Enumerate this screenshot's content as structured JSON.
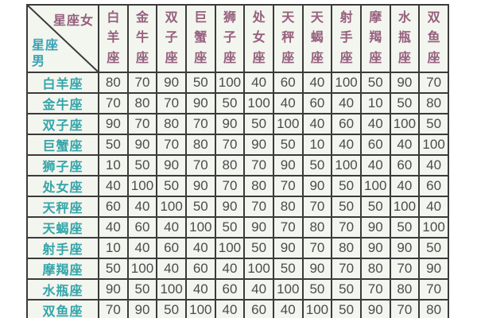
{
  "chart_data": {
    "type": "table",
    "corner": {
      "col_axis_label": "星座女",
      "row_axis_label_top": "星座",
      "row_axis_label_bottom": "男"
    },
    "columns": [
      "白羊座",
      "金牛座",
      "双子座",
      "巨蟹座",
      "狮子座",
      "处女座",
      "天秤座",
      "天蝎座",
      "射手座",
      "摩羯座",
      "水瓶座",
      "双鱼座"
    ],
    "rows": [
      "白羊座",
      "金牛座",
      "双子座",
      "巨蟹座",
      "狮子座",
      "处女座",
      "天秤座",
      "天蝎座",
      "射手座",
      "摩羯座",
      "水瓶座",
      "双鱼座"
    ],
    "values": [
      [
        80,
        70,
        90,
        50,
        100,
        40,
        60,
        40,
        100,
        50,
        90,
        70
      ],
      [
        70,
        80,
        70,
        90,
        50,
        100,
        40,
        60,
        40,
        10,
        50,
        80
      ],
      [
        90,
        70,
        80,
        70,
        90,
        50,
        100,
        40,
        60,
        40,
        100,
        50
      ],
      [
        50,
        90,
        70,
        80,
        70,
        90,
        50,
        10,
        40,
        60,
        40,
        100
      ],
      [
        10,
        50,
        90,
        70,
        80,
        70,
        90,
        50,
        100,
        40,
        60,
        40
      ],
      [
        40,
        100,
        50,
        90,
        70,
        80,
        70,
        90,
        50,
        100,
        40,
        60
      ],
      [
        60,
        40,
        100,
        50,
        90,
        70,
        80,
        70,
        50,
        50,
        100,
        40
      ],
      [
        40,
        60,
        40,
        100,
        50,
        90,
        70,
        80,
        70,
        90,
        50,
        100
      ],
      [
        10,
        40,
        60,
        40,
        100,
        50,
        90,
        70,
        80,
        90,
        90,
        50
      ],
      [
        50,
        100,
        40,
        60,
        40,
        100,
        50,
        90,
        70,
        80,
        70,
        90
      ],
      [
        90,
        50,
        100,
        40,
        60,
        40,
        100,
        50,
        50,
        70,
        80,
        70
      ],
      [
        70,
        90,
        50,
        100,
        40,
        60,
        40,
        100,
        50,
        90,
        70,
        80
      ]
    ]
  },
  "colors": {
    "column_header_text": "#96607e",
    "row_header_text": "#33a5a9",
    "corner_female_text": "#96607e",
    "corner_male_text": "#3aa2b4",
    "value_text": "#4c4c4c",
    "grid_border": "#3b3b3b",
    "cell_background": "#f3f5ef",
    "header_background": "#fbfbf7"
  }
}
